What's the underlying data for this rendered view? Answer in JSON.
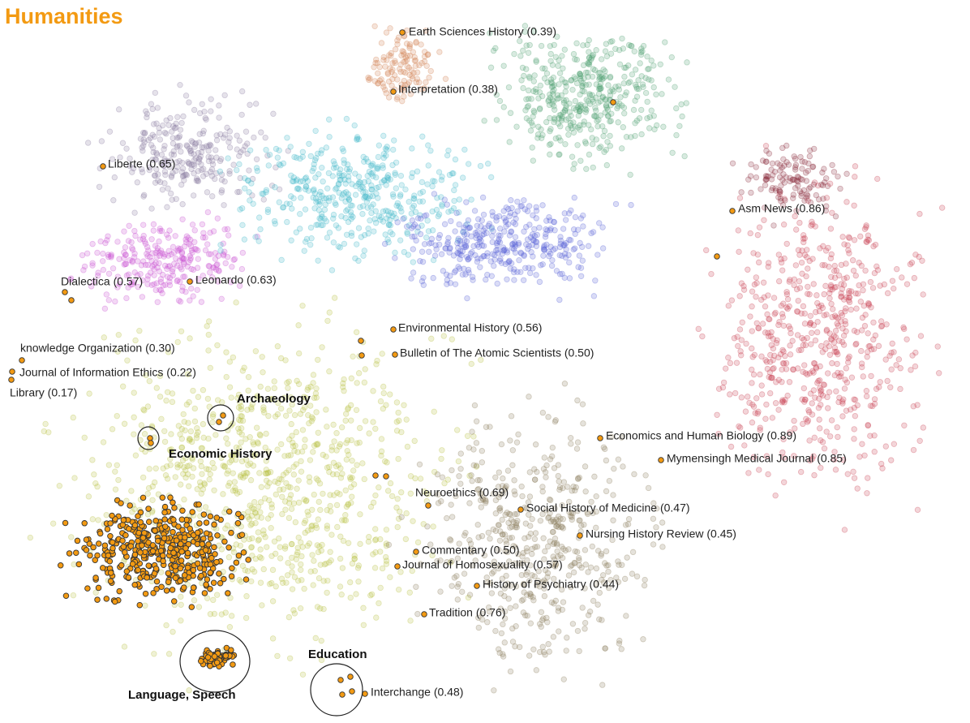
{
  "title": "Humanities",
  "journals": [
    {
      "label": "Earth Sciences History (0.39)"
    },
    {
      "label": "Interpretation (0.38)"
    },
    {
      "label": "Liberte (0.65)"
    },
    {
      "label": "Asm News (0.86)"
    },
    {
      "label": "Dialectica (0.57)"
    },
    {
      "label": "Leonardo (0.63)"
    },
    {
      "label": "knowledge Organization (0.30)"
    },
    {
      "label": "Journal of Information Ethics (0.22)"
    },
    {
      "label": "Library (0.17)"
    },
    {
      "label": "Environmental History (0.56)"
    },
    {
      "label": "Bulletin of The Atomic Scientists (0.50)"
    },
    {
      "label": "Economics and Human Biology (0.89)"
    },
    {
      "label": "Mymensingh Medical Journal (0.85)"
    },
    {
      "label": "Neuroethics (0.69)"
    },
    {
      "label": "Social History of Medicine (0.47)"
    },
    {
      "label": "Nursing History Review (0.45)"
    },
    {
      "label": "Commentary (0.50)"
    },
    {
      "label": "Journal of Homosexuality (0.57)"
    },
    {
      "label": "History of Psychiatry (0.44)"
    },
    {
      "label": "Tradition (0.76)"
    },
    {
      "label": "Interchange (0.48)"
    }
  ],
  "groups": [
    {
      "label": "Archaeology"
    },
    {
      "label": "Economic History"
    },
    {
      "label": "Language, Speech"
    },
    {
      "label": "Education"
    }
  ]
}
